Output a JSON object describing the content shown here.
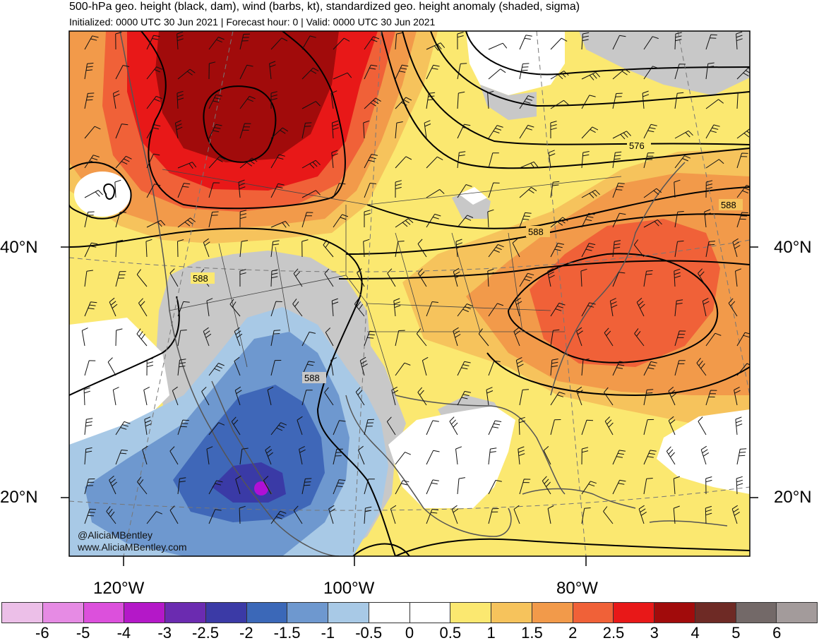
{
  "header": {
    "title": "500-hPa geo. height (black, dam), wind (barbs, kt), standardized geo. height anomaly (shaded, sigma)",
    "subtitle": "Initialized: 0000 UTC 30 Jun 2021 | Forecast hour: 0 | Valid: 0000 UTC 30 Jun 2021"
  },
  "map": {
    "lat_labels": [
      "40°N",
      "20°N"
    ],
    "lon_labels": [
      "120°W",
      "100°W",
      "80°W"
    ],
    "contour_labels": [
      "576",
      "588",
      "588",
      "588",
      "588"
    ],
    "colors": {
      "ocean_white": "#ffffff",
      "land_gray": "#c8c8c8",
      "pos_05": "#fbe870",
      "pos_10": "#f6c35c",
      "pos_15": "#f29a4a",
      "pos_20": "#f06138",
      "pos_25": "#e81818",
      "pos_30": "#a10b0b",
      "neg_05": "#a8c9e6",
      "neg_10": "#6e98cf",
      "neg_15": "#3f67b8",
      "neg_20": "#3a3aa6",
      "neg_25": "#6a22b5",
      "neg_30": "#b010d6"
    }
  },
  "credits": [
    "@AliciaMBentley",
    "www.AliciaMBentley.com"
  ],
  "legend": {
    "colors": [
      "#ecbfe8",
      "#e68be4",
      "#dc50dc",
      "#b418c8",
      "#6b2bb0",
      "#3b3aa6",
      "#3b68b8",
      "#6e98cf",
      "#a8c9e6",
      "#ffffff",
      "#ffffff",
      "#fbe870",
      "#f6c35c",
      "#f29a4a",
      "#f06138",
      "#e81818",
      "#a10b0b",
      "#6e2a25",
      "#736968",
      "#a39b9b"
    ],
    "labels": [
      "-6",
      "-5",
      "-4",
      "-3",
      "-2.5",
      "-2",
      "-1.5",
      "-1",
      "-0.5",
      "0",
      "0.5",
      "1",
      "1.5",
      "2",
      "2.5",
      "3",
      "4",
      "5",
      "6"
    ]
  }
}
